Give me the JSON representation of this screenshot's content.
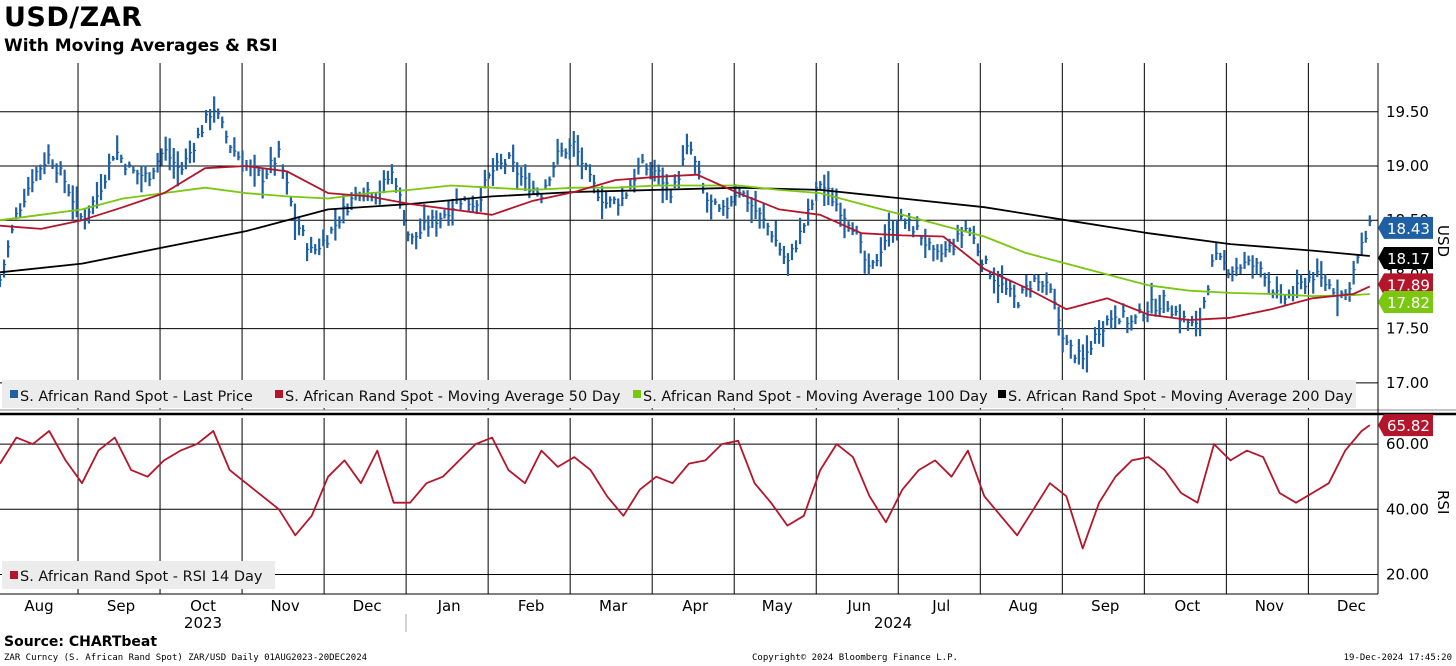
{
  "header": {
    "title": "USD/ZAR",
    "subtitle": "With Moving Averages & RSI"
  },
  "footer": {
    "source": "Source: CHARTbeat",
    "security": "ZAR Curncy (S. African Rand Spot) ZAR/USD  Daily 01AUG2023-20DEC2024",
    "copyright": "Copyright© 2024 Bloomberg Finance L.P.",
    "timestamp": "19-Dec-2024 17:45:20"
  },
  "colors": {
    "price": "#1f5fa3",
    "ma50": "#b5152b",
    "ma100": "#7ac70f",
    "ma200": "#000000",
    "rsi": "#b5152b",
    "grid": "#000000"
  },
  "chart_data": [
    {
      "type": "line",
      "title": "USD/ZAR",
      "ylabel": "USD",
      "ylim": [
        16.75,
        19.95
      ],
      "yticks": [
        "17.00",
        "17.50",
        "18.00",
        "18.50",
        "19.00",
        "19.50"
      ],
      "x_months": [
        "Aug",
        "Sep",
        "Oct",
        "Nov",
        "Dec",
        "Jan",
        "Feb",
        "Mar",
        "Apr",
        "May",
        "Jun",
        "Jul",
        "Aug",
        "Sep",
        "Oct",
        "Nov",
        "Dec"
      ],
      "x_years": [
        "2023",
        "2024"
      ],
      "legend": [
        {
          "label": "S. African Rand Spot - Last Price",
          "color": "#1f5fa3"
        },
        {
          "label": "S. African Rand Spot - Moving Average 50 Day",
          "color": "#b5152b"
        },
        {
          "label": "S. African Rand Spot - Moving Average 100 Day",
          "color": "#7ac70f"
        },
        {
          "label": "S. African Rand Spot - Moving Average 200 Day",
          "color": "#000000"
        }
      ],
      "last_values": [
        {
          "label": "18.43",
          "value": 18.43,
          "color": "#1f5fa3"
        },
        {
          "label": "18.17",
          "value": 18.17,
          "color": "#000000"
        },
        {
          "label": "17.89",
          "value": 17.89,
          "color": "#b5152b"
        },
        {
          "label": "17.82",
          "value": 17.82,
          "color": "#7ac70f"
        }
      ],
      "series": [
        {
          "name": "Last Price",
          "color": "#1f5fa3",
          "x": [
            0.0,
            0.2,
            0.4,
            0.6,
            0.8,
            1.0,
            1.2,
            1.4,
            1.6,
            1.8,
            2.0,
            2.2,
            2.4,
            2.6,
            2.8,
            3.0,
            3.2,
            3.4,
            3.6,
            3.8,
            4.0,
            4.2,
            4.4,
            4.6,
            4.8,
            5.0,
            5.2,
            5.4,
            5.6,
            5.8,
            6.0,
            6.2,
            6.4,
            6.6,
            6.8,
            7.0,
            7.2,
            7.4,
            7.6,
            7.8,
            8.0,
            8.2,
            8.4,
            8.6,
            8.8,
            9.0,
            9.2,
            9.4,
            9.6,
            9.8,
            10.0,
            10.2,
            10.4,
            10.6,
            10.8,
            11.0,
            11.2,
            11.4,
            11.6,
            11.8,
            12.0,
            12.2,
            12.4,
            12.6,
            12.8,
            13.0,
            13.2,
            13.4,
            13.6,
            13.8,
            14.0,
            14.2,
            14.4,
            14.6,
            14.8,
            15.0,
            15.2,
            15.4,
            15.6,
            15.8,
            16.0,
            16.2,
            16.4,
            16.6,
            16.7
          ],
          "values": [
            17.95,
            18.55,
            18.9,
            19.1,
            18.85,
            18.5,
            18.75,
            19.15,
            18.95,
            18.9,
            19.15,
            18.95,
            19.25,
            19.55,
            19.2,
            19.0,
            18.9,
            19.1,
            18.5,
            18.2,
            18.35,
            18.6,
            18.8,
            18.75,
            18.95,
            18.3,
            18.45,
            18.55,
            18.7,
            18.65,
            18.95,
            19.05,
            18.85,
            18.75,
            19.1,
            19.2,
            18.85,
            18.65,
            18.7,
            19.0,
            18.95,
            18.75,
            19.2,
            18.7,
            18.55,
            18.8,
            18.6,
            18.4,
            18.1,
            18.45,
            18.85,
            18.65,
            18.45,
            18.0,
            18.35,
            18.5,
            18.4,
            18.15,
            18.25,
            18.45,
            18.1,
            17.9,
            17.75,
            17.95,
            17.85,
            17.35,
            17.2,
            17.5,
            17.65,
            17.55,
            17.7,
            17.75,
            17.6,
            17.5,
            18.15,
            18.05,
            18.1,
            18.05,
            17.75,
            17.85,
            18.0,
            17.9,
            17.8,
            18.25,
            18.43
          ]
        },
        {
          "name": "MA 50",
          "color": "#b5152b",
          "x": [
            0,
            0.5,
            1,
            1.5,
            2,
            2.5,
            3,
            3.5,
            4,
            4.5,
            5,
            5.5,
            6,
            6.5,
            7,
            7.5,
            8,
            8.5,
            9,
            9.5,
            10,
            10.5,
            11,
            11.5,
            12,
            12.5,
            13,
            13.5,
            14,
            14.5,
            15,
            15.5,
            16,
            16.5,
            16.7
          ],
          "values": [
            18.45,
            18.42,
            18.5,
            18.62,
            18.75,
            18.98,
            19.0,
            18.95,
            18.75,
            18.72,
            18.65,
            18.6,
            18.55,
            18.68,
            18.76,
            18.87,
            18.9,
            18.92,
            18.75,
            18.6,
            18.55,
            18.38,
            18.36,
            18.35,
            18.05,
            17.88,
            17.68,
            17.78,
            17.63,
            17.58,
            17.6,
            17.68,
            17.78,
            17.82,
            17.89
          ]
        },
        {
          "name": "MA 100",
          "color": "#7ac70f",
          "x": [
            0,
            0.5,
            1,
            1.5,
            2,
            2.5,
            3,
            3.5,
            4,
            4.5,
            5,
            5.5,
            6,
            6.5,
            7,
            7.5,
            8,
            8.5,
            9,
            9.5,
            10,
            10.5,
            11,
            11.5,
            12,
            12.5,
            13,
            13.5,
            14,
            14.5,
            15,
            15.5,
            16,
            16.5,
            16.7
          ],
          "values": [
            18.5,
            18.55,
            18.6,
            18.7,
            18.75,
            18.8,
            18.75,
            18.72,
            18.7,
            18.75,
            18.78,
            18.82,
            18.8,
            18.78,
            18.8,
            18.8,
            18.82,
            18.82,
            18.82,
            18.78,
            18.75,
            18.65,
            18.55,
            18.45,
            18.35,
            18.2,
            18.1,
            18.0,
            17.9,
            17.85,
            17.83,
            17.82,
            17.8,
            17.81,
            17.82
          ]
        },
        {
          "name": "MA 200",
          "color": "#000000",
          "x": [
            0,
            1,
            2,
            3,
            4,
            5,
            6,
            7,
            8,
            9,
            10,
            11,
            12,
            13,
            14,
            15,
            16,
            16.7
          ],
          "values": [
            18.02,
            18.1,
            18.25,
            18.4,
            18.6,
            18.65,
            18.72,
            18.76,
            18.78,
            18.8,
            18.78,
            18.7,
            18.62,
            18.5,
            18.38,
            18.28,
            18.22,
            18.17
          ]
        }
      ]
    },
    {
      "type": "line",
      "title": "RSI",
      "ylabel": "RSI",
      "ylim": [
        14,
        68
      ],
      "yticks": [
        "20.00",
        "40.00",
        "60.00"
      ],
      "legend": [
        {
          "label": "S. African Rand Spot - RSI 14 Day",
          "color": "#b5152b"
        }
      ],
      "last_values": [
        {
          "label": "65.82",
          "value": 65.82,
          "color": "#b5152b"
        }
      ],
      "series": [
        {
          "name": "RSI 14 Day",
          "color": "#b5152b",
          "x": [
            0.0,
            0.2,
            0.4,
            0.6,
            0.8,
            1.0,
            1.2,
            1.4,
            1.6,
            1.8,
            2.0,
            2.2,
            2.4,
            2.6,
            2.8,
            3.0,
            3.2,
            3.4,
            3.6,
            3.8,
            4.0,
            4.2,
            4.4,
            4.6,
            4.8,
            5.0,
            5.2,
            5.4,
            5.6,
            5.8,
            6.0,
            6.2,
            6.4,
            6.6,
            6.8,
            7.0,
            7.2,
            7.4,
            7.6,
            7.8,
            8.0,
            8.2,
            8.4,
            8.6,
            8.8,
            9.0,
            9.2,
            9.4,
            9.6,
            9.8,
            10.0,
            10.2,
            10.4,
            10.6,
            10.8,
            11.0,
            11.2,
            11.4,
            11.6,
            11.8,
            12.0,
            12.2,
            12.4,
            12.6,
            12.8,
            13.0,
            13.2,
            13.4,
            13.6,
            13.8,
            14.0,
            14.2,
            14.4,
            14.6,
            14.8,
            15.0,
            15.2,
            15.4,
            15.6,
            15.8,
            16.0,
            16.2,
            16.4,
            16.6,
            16.7
          ],
          "values": [
            54,
            62,
            60,
            64,
            55,
            48,
            58,
            62,
            52,
            50,
            55,
            58,
            60,
            64,
            52,
            48,
            44,
            40,
            32,
            38,
            50,
            55,
            48,
            58,
            42,
            42,
            48,
            50,
            55,
            60,
            62,
            52,
            48,
            58,
            53,
            56,
            52,
            44,
            38,
            46,
            50,
            48,
            54,
            55,
            60,
            61,
            48,
            42,
            35,
            38,
            52,
            60,
            56,
            44,
            36,
            46,
            52,
            55,
            50,
            58,
            44,
            38,
            32,
            40,
            48,
            44,
            28,
            42,
            50,
            55,
            56,
            52,
            45,
            42,
            60,
            55,
            58,
            56,
            45,
            42,
            45,
            48,
            58,
            64,
            65.8
          ]
        }
      ]
    }
  ]
}
